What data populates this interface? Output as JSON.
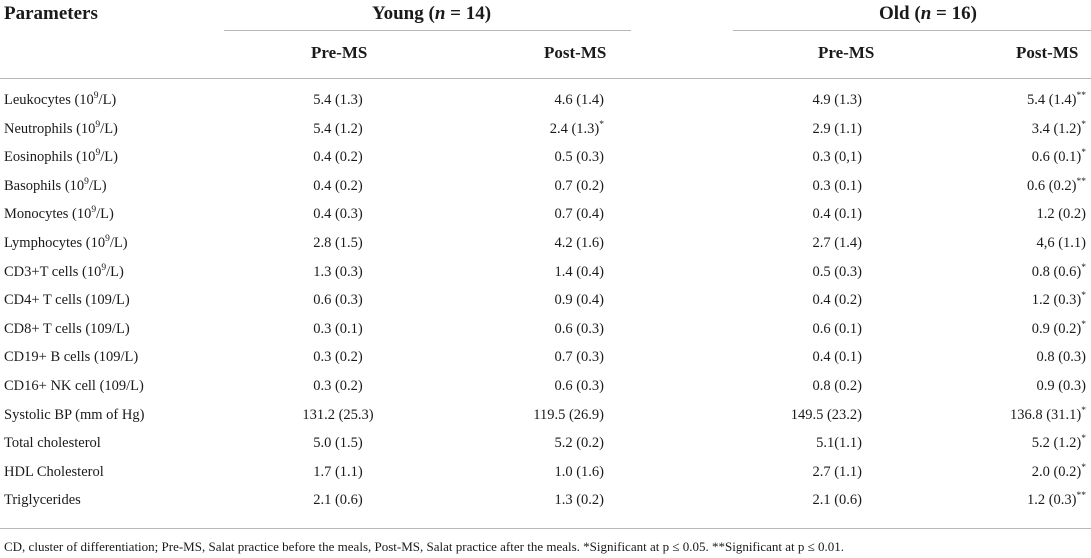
{
  "header": {
    "parameters": "Parameters",
    "young_label": "Young (",
    "young_n": "n",
    "young_rest": " = 14)",
    "old_label": "Old (",
    "old_n": "n",
    "old_rest": " = 16)",
    "young_pre": "Pre-MS",
    "young_post": "Post-MS",
    "old_pre": "Pre-MS",
    "old_post": "Post-MS"
  },
  "rows": [
    {
      "name": "Leukocytes (10",
      "sup": "9",
      "unit": "/L)",
      "y_pre": "5.4 (1.3)",
      "y_post": "4.6 (1.4)",
      "y_post_mark": "",
      "o_pre": "4.9 (1.3)",
      "o_post": "5.4 (1.4)",
      "o_post_mark": "**"
    },
    {
      "name": "Neutrophils (10",
      "sup": "9",
      "unit": "/L)",
      "y_pre": "5.4 (1.2)",
      "y_post": "2.4 (1.3)",
      "y_post_mark": "*",
      "o_pre": "2.9 (1.1)",
      "o_post": "3.4 (1.2)",
      "o_post_mark": "*"
    },
    {
      "name": "Eosinophils (10",
      "sup": "9",
      "unit": "/L)",
      "y_pre": "0.4 (0.2)",
      "y_post": "0.5 (0.3)",
      "y_post_mark": "",
      "o_pre": "0.3 (0,1)",
      "o_post": "0.6 (0.1)",
      "o_post_mark": "*"
    },
    {
      "name": "Basophils (10",
      "sup": "9",
      "unit": "/L)",
      "y_pre": "0.4 (0.2)",
      "y_post": "0.7 (0.2)",
      "y_post_mark": "",
      "o_pre": "0.3 (0.1)",
      "o_post": "0.6 (0.2)",
      "o_post_mark": "**"
    },
    {
      "name": "Monocytes (10",
      "sup": "9",
      "unit": "/L)",
      "y_pre": "0.4 (0.3)",
      "y_post": "0.7 (0.4)",
      "y_post_mark": "",
      "o_pre": "0.4 (0.1)",
      "o_post": "1.2 (0.2)",
      "o_post_mark": ""
    },
    {
      "name": "Lymphocytes (10",
      "sup": "9",
      "unit": "/L)",
      "y_pre": "2.8 (1.5)",
      "y_post": "4.2 (1.6)",
      "y_post_mark": "",
      "o_pre": "2.7 (1.4)",
      "o_post": "4,6 (1.1)",
      "o_post_mark": ""
    },
    {
      "name": "CD3+T cells (10",
      "sup": "9",
      "unit": "/L)",
      "y_pre": "1.3 (0.3)",
      "y_post": "1.4 (0.4)",
      "y_post_mark": "",
      "o_pre": "0.5 (0.3)",
      "o_post": "0.8 (0.6)",
      "o_post_mark": "*"
    },
    {
      "name": "CD4+ T cells (109/L)",
      "sup": "",
      "unit": "",
      "y_pre": "0.6 (0.3)",
      "y_post": "0.9 (0.4)",
      "y_post_mark": "",
      "o_pre": "0.4 (0.2)",
      "o_post": "1.2 (0.3)",
      "o_post_mark": "*"
    },
    {
      "name": "CD8+ T cells (109/L)",
      "sup": "",
      "unit": "",
      "y_pre": "0.3 (0.1)",
      "y_post": "0.6 (0.3)",
      "y_post_mark": "",
      "o_pre": "0.6 (0.1)",
      "o_post": "0.9 (0.2)",
      "o_post_mark": "*"
    },
    {
      "name": "CD19+ B cells (109/L)",
      "sup": "",
      "unit": "",
      "y_pre": "0.3 (0.2)",
      "y_post": "0.7 (0.3)",
      "y_post_mark": "",
      "o_pre": "0.4 (0.1)",
      "o_post": "0.8 (0.3)",
      "o_post_mark": ""
    },
    {
      "name": "CD16+ NK cell (109/L)",
      "sup": "",
      "unit": "",
      "y_pre": "0.3 (0.2)",
      "y_post": "0.6 (0.3)",
      "y_post_mark": "",
      "o_pre": "0.8 (0.2)",
      "o_post": "0.9 (0.3)",
      "o_post_mark": ""
    },
    {
      "name": "Systolic BP (mm of Hg)",
      "sup": "",
      "unit": "",
      "y_pre": "131.2 (25.3)",
      "y_post": "119.5 (26.9)",
      "y_post_mark": "",
      "o_pre": "149.5 (23.2)",
      "o_post": "136.8 (31.1)",
      "o_post_mark": "*"
    },
    {
      "name": "Total cholesterol",
      "sup": "",
      "unit": "",
      "y_pre": "5.0 (1.5)",
      "y_post": "5.2 (0.2)",
      "y_post_mark": "",
      "o_pre": "5.1(1.1)",
      "o_post": "5.2 (1.2)",
      "o_post_mark": "*"
    },
    {
      "name": "HDL Cholesterol",
      "sup": "",
      "unit": "",
      "y_pre": "1.7 (1.1)",
      "y_post": "1.0 (1.6)",
      "y_post_mark": "",
      "o_pre": "2.7 (1.1)",
      "o_post": "2.0 (0.2)",
      "o_post_mark": "*"
    },
    {
      "name": "Triglycerides",
      "sup": "",
      "unit": "",
      "y_pre": "2.1 (0.6)",
      "y_post": "1.3 (0.2)",
      "y_post_mark": "",
      "o_pre": "2.1 (0.6)",
      "o_post": "1.2 (0.3)",
      "o_post_mark": "**"
    }
  ],
  "footnote": "CD, cluster of differentiation; Pre-MS, Salat practice before the meals, Post-MS, Salat practice after the meals. *Significant at p ≤ 0.05. **Significant at p ≤ 0.01."
}
